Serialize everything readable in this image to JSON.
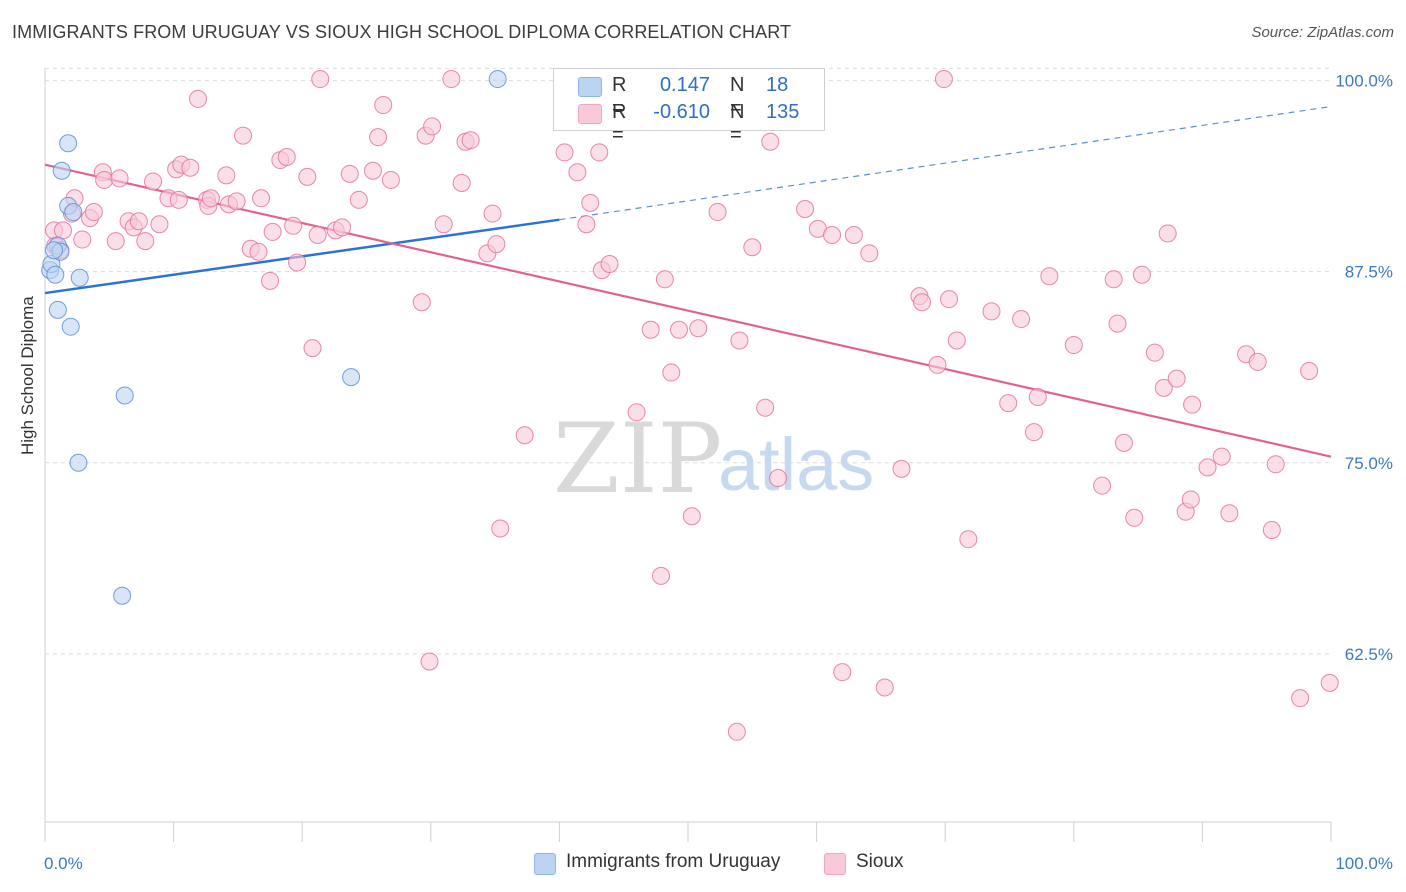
{
  "title": "IMMIGRANTS FROM URUGUAY VS SIOUX HIGH SCHOOL DIPLOMA CORRELATION CHART",
  "source": "Source: ZipAtlas.com",
  "watermark": {
    "zip": "ZIP",
    "atlas": "atlas"
  },
  "legend": {
    "series1": {
      "name": "Immigrants from Uruguay",
      "r_label": "R =",
      "r_value": "0.147",
      "n_label": "N =",
      "n_value": "18",
      "color": "#8fb6e8"
    },
    "series2": {
      "name": "Sioux",
      "r_label": "R =",
      "r_value": "-0.610",
      "n_label": "N =",
      "n_value": "135",
      "color": "#f4a6c0"
    }
  },
  "chart_data": {
    "type": "scatter",
    "title": "IMMIGRANTS FROM URUGUAY VS SIOUX HIGH SCHOOL DIPLOMA CORRELATION CHART",
    "xlabel": "",
    "ylabel": "High School Diploma",
    "xlim": [
      0,
      100
    ],
    "ylim": [
      51.5,
      102
    ],
    "x_tick_labels": [
      "0.0%",
      "100.0%"
    ],
    "y_ticks": [
      62.5,
      75.0,
      87.5,
      100.0
    ],
    "y_tick_labels": [
      "62.5%",
      "75.0%",
      "87.5%",
      "100.0%"
    ],
    "grid": true,
    "series": [
      {
        "name": "Immigrants from Uruguay",
        "color": "#5b8fd6",
        "fill": "#bcd3f2",
        "trend": {
          "x0": 0,
          "y0": 86.1,
          "x1": 40,
          "y1": 90.9,
          "x_dash_end": 100,
          "y_dash_end": 98.3
        },
        "points": [
          [
            0.4,
            87.6
          ],
          [
            0.5,
            88.0
          ],
          [
            1.0,
            89.2
          ],
          [
            1.2,
            88.8
          ],
          [
            0.8,
            87.3
          ],
          [
            1.8,
            91.8
          ],
          [
            2.2,
            91.4
          ],
          [
            1.3,
            94.1
          ],
          [
            1.8,
            95.9
          ],
          [
            2.7,
            87.1
          ],
          [
            1.0,
            85.0
          ],
          [
            2.0,
            83.9
          ],
          [
            6.2,
            79.4
          ],
          [
            23.8,
            80.6
          ],
          [
            2.6,
            75.0
          ],
          [
            6.0,
            66.3
          ],
          [
            35.2,
            100.1
          ],
          [
            0.7,
            88.9
          ]
        ]
      },
      {
        "name": "Sioux",
        "color": "#e5729b",
        "fill": "#f8c9d8",
        "trend": {
          "x0": 0,
          "y0": 94.5,
          "x1": 100,
          "y1": 75.4
        },
        "points": [
          [
            0.8,
            89.2
          ],
          [
            0.7,
            90.2
          ],
          [
            1.4,
            90.2
          ],
          [
            1.2,
            88.9
          ],
          [
            2.3,
            92.3
          ],
          [
            2.1,
            91.3
          ],
          [
            2.9,
            89.6
          ],
          [
            3.5,
            91.0
          ],
          [
            3.8,
            91.4
          ],
          [
            4.5,
            94.0
          ],
          [
            4.6,
            93.5
          ],
          [
            5.5,
            89.5
          ],
          [
            5.8,
            93.6
          ],
          [
            6.5,
            90.8
          ],
          [
            6.9,
            90.4
          ],
          [
            7.3,
            90.8
          ],
          [
            7.8,
            89.5
          ],
          [
            8.4,
            93.4
          ],
          [
            8.9,
            90.6
          ],
          [
            9.6,
            92.3
          ],
          [
            10.2,
            94.2
          ],
          [
            10.4,
            92.2
          ],
          [
            10.6,
            94.5
          ],
          [
            11.3,
            94.3
          ],
          [
            11.9,
            98.8
          ],
          [
            12.6,
            92.2
          ],
          [
            12.7,
            91.8
          ],
          [
            12.9,
            92.3
          ],
          [
            14.1,
            93.8
          ],
          [
            14.3,
            91.9
          ],
          [
            14.9,
            92.1
          ],
          [
            15.4,
            96.4
          ],
          [
            16.0,
            89.0
          ],
          [
            16.6,
            88.8
          ],
          [
            16.8,
            92.3
          ],
          [
            17.5,
            86.9
          ],
          [
            17.7,
            90.1
          ],
          [
            18.3,
            94.8
          ],
          [
            18.8,
            95.0
          ],
          [
            19.3,
            90.5
          ],
          [
            19.6,
            88.1
          ],
          [
            20.4,
            93.7
          ],
          [
            20.8,
            82.5
          ],
          [
            21.2,
            89.9
          ],
          [
            21.4,
            100.1
          ],
          [
            22.6,
            90.2
          ],
          [
            23.1,
            90.4
          ],
          [
            23.7,
            93.9
          ],
          [
            24.4,
            92.2
          ],
          [
            25.5,
            94.1
          ],
          [
            25.9,
            96.3
          ],
          [
            26.3,
            98.4
          ],
          [
            26.9,
            93.5
          ],
          [
            29.3,
            85.5
          ],
          [
            29.6,
            96.4
          ],
          [
            30.1,
            97.0
          ],
          [
            29.9,
            62.0
          ],
          [
            31.0,
            90.6
          ],
          [
            31.6,
            100.1
          ],
          [
            32.4,
            93.3
          ],
          [
            32.7,
            96.0
          ],
          [
            33.1,
            96.1
          ],
          [
            34.4,
            88.7
          ],
          [
            34.8,
            91.3
          ],
          [
            35.1,
            89.3
          ],
          [
            35.4,
            70.7
          ],
          [
            37.3,
            76.8
          ],
          [
            40.4,
            95.3
          ],
          [
            41.4,
            94.0
          ],
          [
            42.1,
            90.6
          ],
          [
            42.4,
            92.0
          ],
          [
            43.1,
            95.3
          ],
          [
            43.3,
            87.6
          ],
          [
            43.9,
            88.0
          ],
          [
            45.0,
            100.1
          ],
          [
            46.0,
            78.3
          ],
          [
            47.1,
            83.7
          ],
          [
            47.9,
            67.6
          ],
          [
            48.2,
            87.0
          ],
          [
            48.7,
            80.9
          ],
          [
            49.3,
            83.7
          ],
          [
            50.3,
            71.5
          ],
          [
            50.8,
            83.8
          ],
          [
            52.3,
            91.4
          ],
          [
            53.8,
            57.4
          ],
          [
            54.0,
            83.0
          ],
          [
            55.0,
            89.1
          ],
          [
            56.0,
            78.6
          ],
          [
            57.0,
            74.0
          ],
          [
            56.4,
            96.0
          ],
          [
            59.1,
            91.6
          ],
          [
            60.1,
            90.3
          ],
          [
            61.2,
            89.9
          ],
          [
            62.0,
            61.3
          ],
          [
            62.9,
            89.9
          ],
          [
            64.1,
            88.7
          ],
          [
            65.3,
            60.3
          ],
          [
            66.6,
            74.6
          ],
          [
            68.0,
            85.9
          ],
          [
            68.2,
            85.5
          ],
          [
            69.4,
            81.4
          ],
          [
            69.9,
            100.1
          ],
          [
            70.3,
            85.7
          ],
          [
            70.9,
            83.0
          ],
          [
            71.8,
            70.0
          ],
          [
            73.6,
            84.9
          ],
          [
            74.9,
            78.9
          ],
          [
            75.9,
            84.4
          ],
          [
            76.9,
            77.0
          ],
          [
            77.2,
            79.3
          ],
          [
            78.1,
            87.2
          ],
          [
            80.0,
            82.7
          ],
          [
            82.2,
            73.5
          ],
          [
            83.1,
            87.0
          ],
          [
            83.4,
            84.1
          ],
          [
            83.9,
            76.3
          ],
          [
            84.7,
            71.4
          ],
          [
            85.3,
            87.3
          ],
          [
            86.3,
            82.2
          ],
          [
            87.0,
            79.9
          ],
          [
            87.3,
            90.0
          ],
          [
            88.0,
            80.5
          ],
          [
            88.7,
            71.8
          ],
          [
            89.1,
            72.6
          ],
          [
            89.2,
            78.8
          ],
          [
            90.4,
            74.7
          ],
          [
            91.5,
            75.4
          ],
          [
            92.1,
            71.7
          ],
          [
            93.4,
            82.1
          ],
          [
            94.3,
            81.6
          ],
          [
            95.4,
            70.6
          ],
          [
            95.7,
            74.9
          ],
          [
            97.6,
            59.6
          ],
          [
            98.3,
            81.0
          ],
          [
            99.9,
            60.6
          ]
        ]
      }
    ]
  }
}
